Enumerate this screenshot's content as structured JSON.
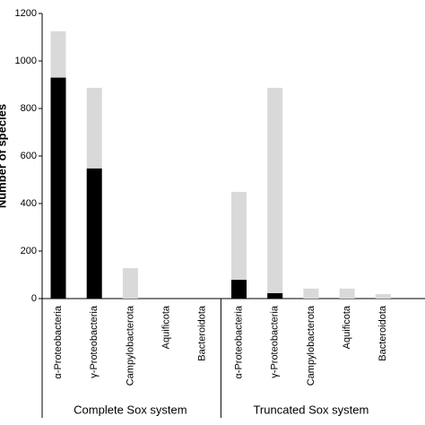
{
  "chart_data": {
    "type": "stacked_bar",
    "y_label": "Number of species",
    "categories": [
      "α-Proteobacteria",
      "γ-Proteobacteria",
      "Campylobacterota",
      "Aquificota",
      "Bacteroidota",
      "α-Proteobacteria",
      "γ-Proteobacteria",
      "Campylobacterota",
      "Aquificota",
      "Bacteroidota"
    ],
    "groups": [
      {
        "label": "Complete Sox system",
        "size": 5
      },
      {
        "label": "Truncated Sox system",
        "size": 5
      }
    ],
    "series": [
      {
        "color": "#000000",
        "values": [
          930,
          548,
          0,
          0,
          0,
          79,
          23,
          0,
          0,
          0
        ]
      },
      {
        "color": "#d9d9d9",
        "values": [
          195,
          339,
          128,
          0,
          0,
          370,
          864,
          42,
          42,
          19
        ]
      }
    ],
    "ylim": [
      0,
      1200
    ],
    "yticks": [
      0,
      200,
      400,
      600,
      800,
      1000,
      1200
    ]
  }
}
